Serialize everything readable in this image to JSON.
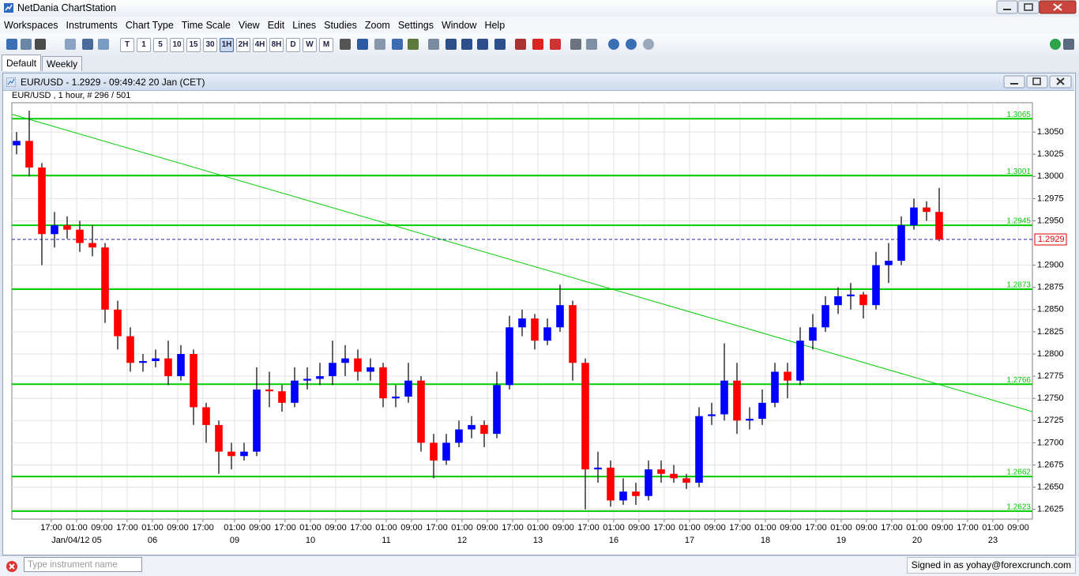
{
  "window": {
    "title": "NetDania ChartStation"
  },
  "menu": [
    "Workspaces",
    "Instruments",
    "Chart Type",
    "Time Scale",
    "View",
    "Edit",
    "Lines",
    "Studies",
    "Zoom",
    "Settings",
    "Window",
    "Help"
  ],
  "toolbar": {
    "intervals": [
      "T",
      "1",
      "5",
      "10",
      "15",
      "30",
      "1H",
      "2H",
      "4H",
      "8H",
      "D",
      "W",
      "M"
    ],
    "active_interval": "1H"
  },
  "tabs": [
    "Default",
    "Weekly"
  ],
  "chart_window": {
    "title": "EUR/USD - 1.2929 - 09:49:42  20 Jan (CET)",
    "info": "EUR/USD , 1 hour, # 296 / 501"
  },
  "chart_data": {
    "type": "candlestick",
    "up_color": "#0000ff",
    "down_color": "#ff0000",
    "level_color": "#00cc00",
    "grid": true,
    "xlim": [
      -12.5,
      310.5
    ],
    "ylim": [
      1.2614,
      1.3083
    ],
    "yticks": [
      1.2625,
      {
        "value": 1.265,
        "label": "1.2650"
      },
      1.2675,
      {
        "value": 1.27,
        "label": "1.2700"
      },
      1.2725,
      {
        "value": 1.275,
        "label": "1.2750"
      },
      1.2775,
      {
        "value": 1.28,
        "label": "1.2800"
      },
      1.2825,
      {
        "value": 1.285,
        "label": "1.2850"
      },
      1.2875,
      {
        "value": 1.29,
        "label": "1.2900"
      },
      {
        "value": 1.295,
        "label": "1.2950"
      },
      1.2975,
      {
        "value": 1.3,
        "label": "1.3000"
      },
      1.3025,
      {
        "value": 1.305,
        "label": "1.3050"
      }
    ],
    "xticks": [
      {
        "value": 0,
        "label": "17:00"
      },
      {
        "value": 8,
        "label": "01:00"
      },
      {
        "value": 16,
        "label": "09:00"
      },
      {
        "value": 24,
        "label": "17:00"
      },
      {
        "value": 32,
        "label": "01:00"
      },
      {
        "value": 40,
        "label": "09:00"
      },
      {
        "value": 48,
        "label": "17:00"
      },
      {
        "value": 58,
        "label": "01:00"
      },
      {
        "value": 66,
        "label": "09:00"
      },
      {
        "value": 74,
        "label": "17:00"
      },
      {
        "value": 82,
        "label": "01:00"
      },
      {
        "value": 90,
        "label": "09:00"
      },
      {
        "value": 98,
        "label": "17:00"
      },
      {
        "value": 106,
        "label": "01:00"
      },
      {
        "value": 114,
        "label": "09:00"
      },
      {
        "value": 122,
        "label": "17:00"
      },
      {
        "value": 130,
        "label": "01:00"
      },
      {
        "value": 138,
        "label": "09:00"
      },
      {
        "value": 146,
        "label": "17:00"
      },
      {
        "value": 154,
        "label": "01:00"
      },
      {
        "value": 162,
        "label": "09:00"
      },
      {
        "value": 170,
        "label": "17:00"
      },
      {
        "value": 178,
        "label": "01:00"
      },
      {
        "value": 186,
        "label": "09:00"
      },
      {
        "value": 194,
        "label": "17:00"
      },
      {
        "value": 202,
        "label": "01:00"
      },
      {
        "value": 210,
        "label": "09:00"
      },
      {
        "value": 218,
        "label": "17:00"
      },
      {
        "value": 226,
        "label": "01:00"
      },
      {
        "value": 234,
        "label": "09:00"
      },
      {
        "value": 242,
        "label": "17:00"
      },
      {
        "value": 250,
        "label": "01:00"
      },
      {
        "value": 258,
        "label": "09:00"
      },
      {
        "value": 266,
        "label": "17:00"
      },
      {
        "value": 274,
        "label": "01:00"
      },
      {
        "value": 282,
        "label": "09:00"
      },
      {
        "value": 290,
        "label": "17:00"
      },
      {
        "value": 298,
        "label": "01:00"
      },
      {
        "value": 306,
        "label": "09:00"
      }
    ],
    "date_ticks": [
      {
        "value": 8,
        "label": "Jan/04/12 05"
      },
      {
        "value": 32,
        "label": "06"
      },
      {
        "value": 58,
        "label": "09"
      },
      {
        "value": 82,
        "label": "10"
      },
      {
        "value": 106,
        "label": "11"
      },
      {
        "value": 130,
        "label": "12"
      },
      {
        "value": 154,
        "label": "13"
      },
      {
        "value": 178,
        "label": "16"
      },
      {
        "value": 202,
        "label": "17"
      },
      {
        "value": 226,
        "label": "18"
      },
      {
        "value": 250,
        "label": "19"
      },
      {
        "value": 274,
        "label": "20"
      },
      {
        "value": 298,
        "label": "23"
      }
    ],
    "x": [
      -11,
      -7,
      -3,
      1,
      5,
      9,
      13,
      17,
      21,
      25,
      29,
      33,
      37,
      41,
      45,
      49,
      53,
      57,
      61,
      65,
      69,
      73,
      77,
      81,
      85,
      89,
      93,
      97,
      101,
      105,
      109,
      113,
      117,
      121,
      125,
      129,
      133,
      137,
      141,
      145,
      149,
      153,
      157,
      161,
      165,
      169,
      173,
      177,
      181,
      185,
      189,
      193,
      197,
      201,
      205,
      209,
      213,
      217,
      221,
      225,
      229,
      233,
      237,
      241,
      245,
      249,
      253,
      257,
      261,
      265,
      269,
      273,
      277,
      281
    ],
    "open": [
      1.3035,
      1.304,
      1.301,
      1.2935,
      1.2945,
      1.294,
      1.2925,
      1.292,
      1.285,
      1.282,
      1.279,
      1.2792,
      1.2795,
      1.2775,
      1.28,
      1.274,
      1.272,
      1.269,
      1.2685,
      1.269,
      1.276,
      1.2758,
      1.2745,
      1.277,
      1.2772,
      1.2775,
      1.279,
      1.2795,
      1.278,
      1.2785,
      1.275,
      1.2752,
      1.277,
      1.27,
      1.268,
      1.27,
      1.2715,
      1.272,
      1.271,
      1.2765,
      1.283,
      1.284,
      1.2815,
      1.283,
      1.2855,
      1.279,
      1.267,
      1.2672,
      1.2635,
      1.2645,
      1.264,
      1.267,
      1.2665,
      1.266,
      1.2655,
      1.273,
      1.2732,
      1.277,
      1.2725,
      1.2727,
      1.2745,
      1.278,
      1.277,
      1.2815,
      1.283,
      1.2855,
      1.2865,
      1.2867,
      1.2855,
      1.29,
      1.2905,
      1.2945,
      1.2965,
      1.296
    ],
    "high": [
      1.305,
      1.3074,
      1.3015,
      1.296,
      1.2955,
      1.295,
      1.2945,
      1.2925,
      1.286,
      1.283,
      1.28,
      1.2805,
      1.2815,
      1.281,
      1.2805,
      1.2745,
      1.2725,
      1.27,
      1.27,
      1.2785,
      1.278,
      1.2765,
      1.2785,
      1.2785,
      1.279,
      1.2815,
      1.281,
      1.2805,
      1.2795,
      1.279,
      1.2765,
      1.279,
      1.2775,
      1.271,
      1.271,
      1.2725,
      1.273,
      1.2725,
      1.278,
      1.2843,
      1.285,
      1.2845,
      1.284,
      1.2878,
      1.286,
      1.2795,
      1.269,
      1.268,
      1.266,
      1.2655,
      1.268,
      1.268,
      1.2675,
      1.2665,
      1.274,
      1.2745,
      1.2812,
      1.279,
      1.274,
      1.276,
      1.279,
      1.279,
      1.283,
      1.2845,
      1.2865,
      1.2875,
      1.288,
      1.287,
      1.2915,
      1.2925,
      1.2955,
      1.2975,
      1.2972,
      1.2987
    ],
    "low": [
      1.3025,
      1.3,
      1.29,
      1.292,
      1.293,
      1.2915,
      1.291,
      1.2835,
      1.2805,
      1.278,
      1.278,
      1.2785,
      1.2765,
      1.277,
      1.272,
      1.27,
      1.2665,
      1.267,
      1.268,
      1.2685,
      1.274,
      1.2735,
      1.274,
      1.276,
      1.2765,
      1.2765,
      1.2775,
      1.277,
      1.277,
      1.274,
      1.274,
      1.2745,
      1.269,
      1.266,
      1.2675,
      1.2695,
      1.2705,
      1.2695,
      1.2705,
      1.276,
      1.282,
      1.2805,
      1.281,
      1.2825,
      1.277,
      1.2625,
      1.2655,
      1.2628,
      1.263,
      1.263,
      1.2635,
      1.2655,
      1.2655,
      1.2648,
      1.265,
      1.272,
      1.2725,
      1.271,
      1.2715,
      1.272,
      1.274,
      1.275,
      1.2765,
      1.2805,
      1.2825,
      1.2845,
      1.285,
      1.284,
      1.285,
      1.288,
      1.29,
      1.294,
      1.295,
      1.2927
    ],
    "close": [
      1.304,
      1.301,
      1.2935,
      1.2945,
      1.294,
      1.2925,
      1.292,
      1.285,
      1.282,
      1.279,
      1.2792,
      1.2795,
      1.2775,
      1.28,
      1.274,
      1.272,
      1.269,
      1.2685,
      1.269,
      1.276,
      1.2758,
      1.2745,
      1.277,
      1.2772,
      1.2775,
      1.279,
      1.2795,
      1.278,
      1.2785,
      1.275,
      1.2752,
      1.277,
      1.27,
      1.268,
      1.27,
      1.2715,
      1.272,
      1.271,
      1.2765,
      1.283,
      1.284,
      1.2815,
      1.283,
      1.2855,
      1.279,
      1.267,
      1.2672,
      1.2635,
      1.2645,
      1.264,
      1.267,
      1.2665,
      1.266,
      1.2655,
      1.273,
      1.2732,
      1.277,
      1.2725,
      1.2727,
      1.2745,
      1.278,
      1.277,
      1.2815,
      1.283,
      1.2855,
      1.2865,
      1.2867,
      1.2855,
      1.29,
      1.2905,
      1.2945,
      1.2965,
      1.296,
      1.2929
    ],
    "levels": [
      1.3065,
      1.3001,
      1.2945,
      1.2873,
      1.2766,
      1.2662,
      1.2623
    ],
    "trend_line": {
      "x": [
        -12.5,
        310.5
      ],
      "values": [
        1.307,
        1.2735
      ]
    },
    "last_price": 1.2929
  },
  "status_bar": {
    "search_placeholder": "Type instrument name",
    "signed_in": "Signed in as yohay@forexcrunch.com"
  }
}
